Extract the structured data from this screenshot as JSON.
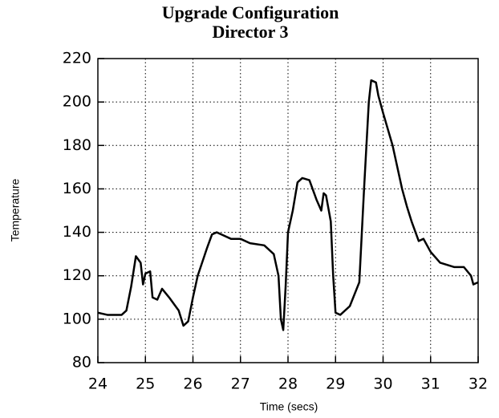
{
  "chart_data": {
    "type": "line",
    "title": "Upgrade Configuration",
    "subtitle": "Director 3",
    "x_label": "Time (secs)",
    "y_label": "Temperature",
    "xlim": [
      24,
      32
    ],
    "xticks": [
      24,
      25,
      26,
      27,
      28,
      29,
      30,
      31,
      32
    ],
    "ylim": [
      80,
      220
    ],
    "yticks": [
      80,
      100,
      120,
      140,
      160,
      180,
      200,
      220
    ],
    "grid": true,
    "series": [
      {
        "color": "#000000",
        "x": [
          24.0,
          24.2,
          24.5,
          24.6,
          24.7,
          24.8,
          24.9,
          24.95,
          25.0,
          25.1,
          25.15,
          25.25,
          25.35,
          25.5,
          25.7,
          25.8,
          25.9,
          26.0,
          26.1,
          26.3,
          26.4,
          26.5,
          26.6,
          26.8,
          27.0,
          27.2,
          27.5,
          27.7,
          27.8,
          27.85,
          27.9,
          27.95,
          28.0,
          28.1,
          28.2,
          28.3,
          28.45,
          28.6,
          28.7,
          28.75,
          28.8,
          28.9,
          28.95,
          29.0,
          29.1,
          29.3,
          29.5,
          29.6,
          29.7,
          29.75,
          29.85,
          29.9,
          30.0,
          30.2,
          30.4,
          30.5,
          30.6,
          30.75,
          30.85,
          31.0,
          31.2,
          31.5,
          31.7,
          31.85,
          31.9,
          32.0
        ],
        "values": [
          103,
          102,
          102,
          104,
          115,
          129,
          126,
          116,
          121,
          122,
          110,
          109,
          114,
          110,
          104,
          97,
          99,
          110,
          120,
          133,
          139,
          140,
          139,
          137,
          137,
          135,
          134,
          130,
          120,
          100,
          95,
          115,
          140,
          150,
          163,
          165,
          164,
          155,
          150,
          158,
          157,
          145,
          120,
          103,
          102,
          106,
          117,
          160,
          200,
          210,
          209,
          203,
          195,
          180,
          160,
          152,
          145,
          136,
          137,
          131,
          126,
          124,
          124,
          120,
          116,
          117
        ]
      }
    ]
  }
}
